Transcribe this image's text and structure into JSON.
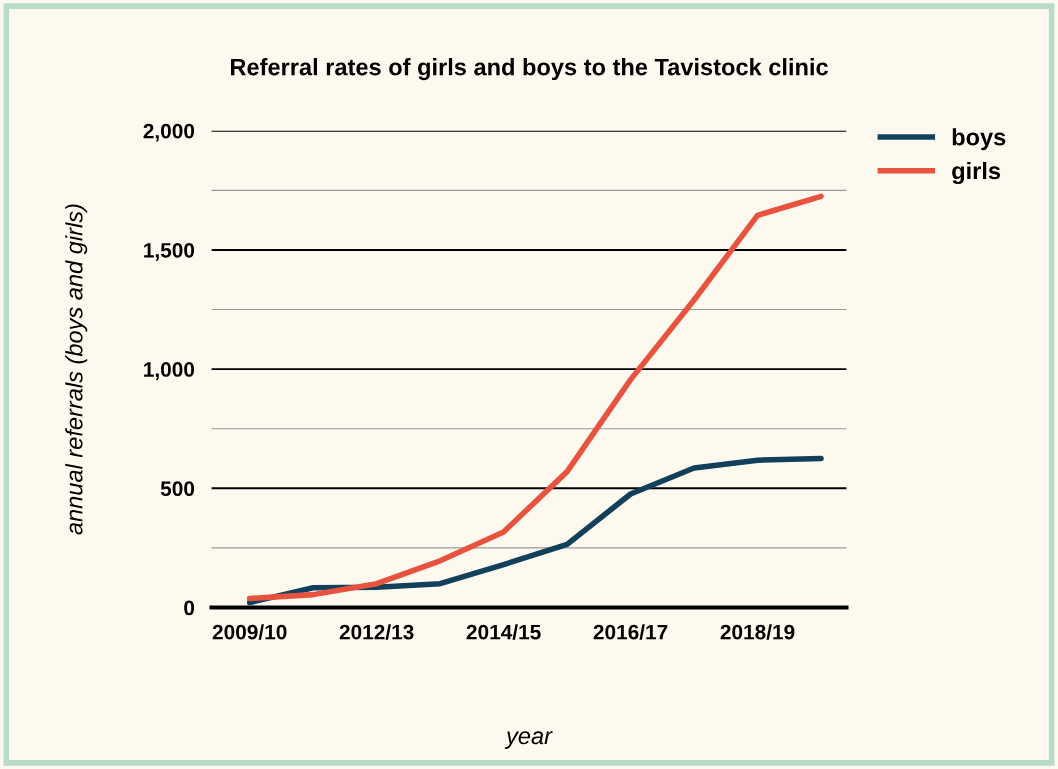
{
  "chart_data": {
    "type": "line",
    "title": "Referral rates of girls and boys to the Tavistock clinic",
    "xlabel": "year",
    "ylabel": "annual referrals (boys and girls)",
    "categories": [
      "2009/10",
      null,
      "2012/13",
      null,
      "2014/15",
      null,
      "2016/17",
      null,
      "2018/19",
      null
    ],
    "series": [
      {
        "name": "boys",
        "color": "#123f5a",
        "values": [
          21,
          83,
          85,
          100,
          180,
          265,
          476,
          585,
          618,
          625
        ]
      },
      {
        "name": "girls",
        "color": "#e8533f",
        "values": [
          38,
          54,
          100,
          196,
          317,
          570,
          956,
          1290,
          1645,
          1725
        ]
      }
    ],
    "ylim": [
      0,
      2000
    ],
    "yticks": [
      0,
      {
        "value": 250,
        "label": null
      },
      500,
      {
        "value": 750,
        "label": null
      },
      "1,000",
      {
        "value": 1250,
        "label": null
      },
      "1,500",
      {
        "value": 1750,
        "label": null
      },
      "2,000"
    ],
    "grid": "y",
    "legend": "top right",
    "marker": "none",
    "line_style": "solid"
  }
}
